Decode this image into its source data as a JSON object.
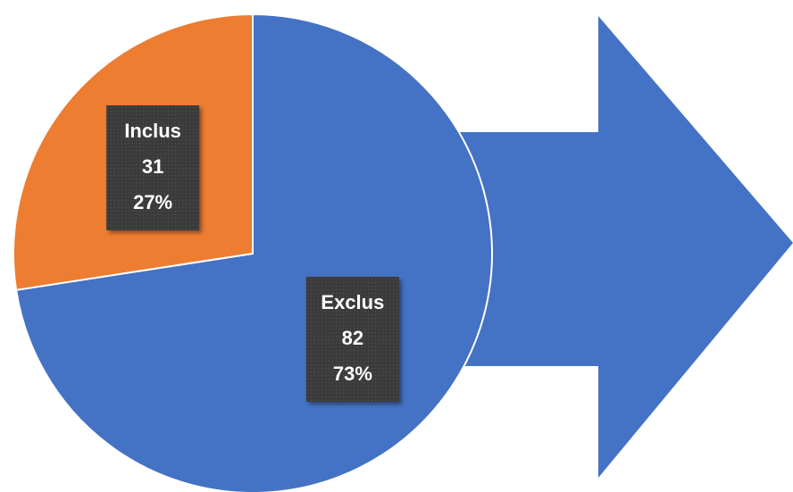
{
  "chart_data": {
    "type": "pie",
    "categories": [
      "Exclus",
      "Inclus"
    ],
    "values": [
      82,
      31
    ],
    "percent_labels": [
      "73%",
      "27%"
    ],
    "colors": [
      "#4472c4",
      "#ed7d31"
    ]
  }
}
